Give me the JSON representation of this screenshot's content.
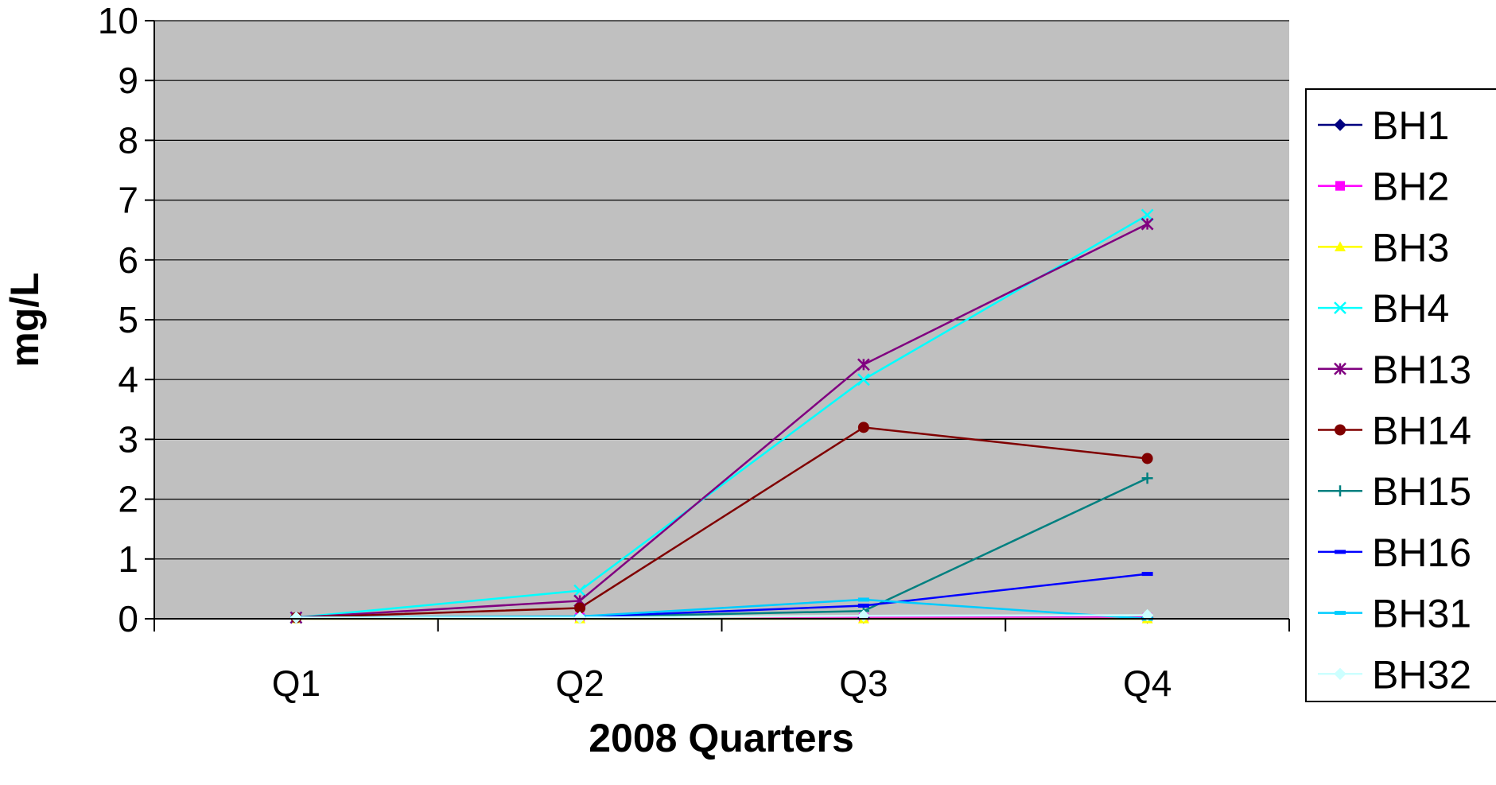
{
  "chart_data": {
    "type": "line",
    "title": "",
    "xlabel": "2008 Quarters",
    "ylabel": "mg/L",
    "categories": [
      "Q1",
      "Q2",
      "Q3",
      "Q4"
    ],
    "ylim": [
      0,
      10
    ],
    "yticks": [
      0,
      1,
      2,
      3,
      4,
      5,
      6,
      7,
      8,
      9,
      10
    ],
    "ytick_labels": [
      "0",
      "1",
      "2",
      "3",
      "4",
      "5",
      "6",
      "7",
      "8",
      "9",
      "10"
    ],
    "grid": true,
    "plot_background": "#c0c0c0",
    "legend_position": "right",
    "series": [
      {
        "name": "BH1",
        "color": "#000080",
        "marker": "diamond",
        "values": [
          0.02,
          0.02,
          0.02,
          0.02
        ]
      },
      {
        "name": "BH2",
        "color": "#ff00ff",
        "marker": "square",
        "values": [
          0.02,
          0.02,
          0.02,
          0.02
        ]
      },
      {
        "name": "BH3",
        "color": "#ffff00",
        "marker": "triangle",
        "values": [
          0.0,
          0.0,
          0.0,
          0.0
        ]
      },
      {
        "name": "BH4",
        "color": "#00ffff",
        "marker": "x",
        "values": [
          0.02,
          0.47,
          4.0,
          6.75
        ]
      },
      {
        "name": "BH13",
        "color": "#800080",
        "marker": "star",
        "values": [
          0.02,
          0.3,
          4.25,
          6.6
        ]
      },
      {
        "name": "BH14",
        "color": "#800000",
        "marker": "circle",
        "values": [
          0.02,
          0.18,
          3.2,
          2.68
        ]
      },
      {
        "name": "BH15",
        "color": "#008080",
        "marker": "plus",
        "values": [
          0.02,
          0.03,
          0.13,
          2.35
        ]
      },
      {
        "name": "BH16",
        "color": "#0000ff",
        "marker": "dash",
        "values": [
          0.02,
          0.03,
          0.22,
          0.75
        ]
      },
      {
        "name": "BH31",
        "color": "#00ccff",
        "marker": "dash",
        "values": [
          0.02,
          0.04,
          0.32,
          0.0
        ]
      },
      {
        "name": "BH32",
        "color": "#ccffff",
        "marker": "diamond",
        "values": [
          0.02,
          0.02,
          0.05,
          0.06
        ]
      }
    ]
  }
}
